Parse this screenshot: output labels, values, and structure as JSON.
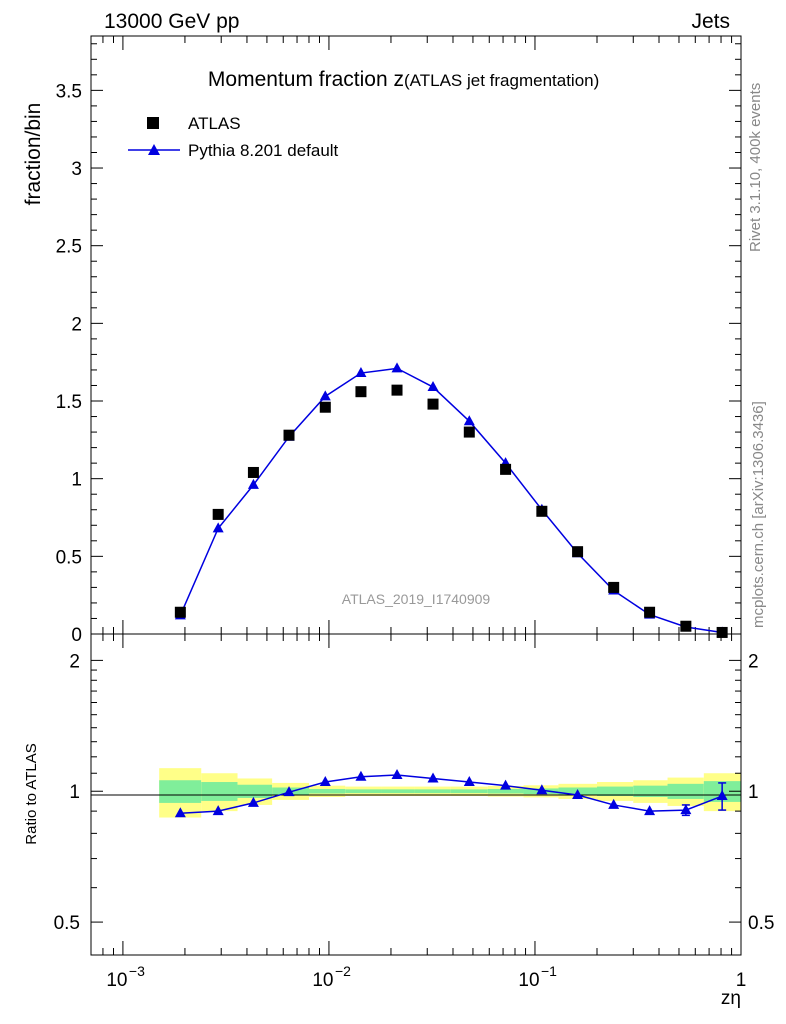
{
  "header": {
    "left": "13000 GeV pp",
    "right": "Jets"
  },
  "side_labels": {
    "rivet": "Rivet 3.1.10,  400k events",
    "mcplots": "mcplots.cern.ch [arXiv:1306.3436]"
  },
  "chart_data": [
    {
      "type": "scatter",
      "title_main": "Momentum fraction z",
      "title_sub": "(ATLAS jet fragmentation)",
      "watermark": "ATLAS_2019_I1740909",
      "ylabel": "fraction/bin",
      "xscale": "log",
      "xlim": [
        0.0007,
        1.0
      ],
      "ylim": [
        0,
        3.85
      ],
      "y_ticks": [
        "0",
        "0.5",
        "1",
        "1.5",
        "2",
        "2.5",
        "3",
        "3.5"
      ],
      "legend_position": "top-left",
      "colors": {
        "data": "#000000",
        "mc": "#0000e0"
      },
      "series": [
        {
          "name": "ATLAS",
          "style": "markers-square",
          "x": [
            0.0019,
            0.0029,
            0.0043,
            0.0064,
            0.0096,
            0.0143,
            0.0214,
            0.032,
            0.048,
            0.072,
            0.108,
            0.161,
            0.241,
            0.36,
            0.54,
            0.81
          ],
          "y": [
            0.14,
            0.77,
            1.04,
            1.28,
            1.46,
            1.56,
            1.57,
            1.48,
            1.3,
            1.06,
            0.79,
            0.53,
            0.3,
            0.14,
            0.05,
            0.01
          ]
        },
        {
          "name": "Pythia 8.201 default",
          "style": "line-triangles",
          "x": [
            0.0019,
            0.0029,
            0.0043,
            0.0064,
            0.0096,
            0.0143,
            0.0214,
            0.032,
            0.048,
            0.072,
            0.108,
            0.161,
            0.241,
            0.36,
            0.54,
            0.81
          ],
          "y": [
            0.12,
            0.68,
            0.96,
            1.27,
            1.53,
            1.68,
            1.71,
            1.59,
            1.37,
            1.1,
            0.8,
            0.52,
            0.28,
            0.125,
            0.045,
            0.01
          ]
        }
      ]
    },
    {
      "type": "scatter",
      "ylabel": "Ratio to ATLAS",
      "xlabel": "zη",
      "xscale": "log",
      "xlim": [
        0.0007,
        1.0
      ],
      "yscale": "log",
      "ylim": [
        0.42,
        2.3
      ],
      "y_ticks": [
        "0.5",
        "1",
        "2"
      ],
      "x_ticks": [
        "10",
        "10",
        "10",
        "1"
      ],
      "x_tick_exponents": [
        "−3",
        "−2",
        "−1",
        ""
      ],
      "colors": {
        "mc": "#0000e0",
        "band_inner": "#80ee9a",
        "band_outer": "#ffff88"
      },
      "bands": {
        "edges": [
          0.0015,
          0.0024,
          0.0036,
          0.0053,
          0.008,
          0.012,
          0.018,
          0.026,
          0.039,
          0.059,
          0.088,
          0.13,
          0.2,
          0.3,
          0.44,
          0.66,
          1.0
        ],
        "inner": [
          0.06,
          0.05,
          0.035,
          0.02,
          0.012,
          0.01,
          0.01,
          0.01,
          0.01,
          0.012,
          0.015,
          0.02,
          0.025,
          0.03,
          0.04,
          0.055
        ],
        "outer": [
          0.13,
          0.1,
          0.07,
          0.045,
          0.03,
          0.025,
          0.025,
          0.025,
          0.025,
          0.028,
          0.032,
          0.04,
          0.05,
          0.06,
          0.075,
          0.1
        ]
      },
      "series": [
        {
          "name": "Pythia 8.201 default",
          "x": [
            0.0019,
            0.0029,
            0.0043,
            0.0064,
            0.0096,
            0.0143,
            0.0214,
            0.032,
            0.048,
            0.072,
            0.108,
            0.161,
            0.241,
            0.36,
            0.54,
            0.81
          ],
          "y": [
            0.89,
            0.9,
            0.94,
            0.995,
            1.05,
            1.08,
            1.09,
            1.07,
            1.05,
            1.03,
            1.005,
            0.98,
            0.93,
            0.9,
            0.905,
            0.975
          ],
          "yerr": [
            0,
            0,
            0,
            0,
            0,
            0,
            0,
            0,
            0,
            0,
            0,
            0,
            0,
            0,
            0.025,
            0.07
          ]
        }
      ]
    }
  ]
}
